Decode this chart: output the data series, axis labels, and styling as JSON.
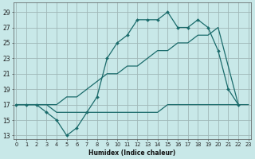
{
  "xlabel": "Humidex (Indice chaleur)",
  "background_color": "#c8e8e8",
  "grid_color": "#a0b8b8",
  "line_color": "#1a6b6b",
  "xlim": [
    0,
    23
  ],
  "ylim": [
    13,
    30
  ],
  "yticks": [
    13,
    15,
    17,
    19,
    21,
    23,
    25,
    27,
    29
  ],
  "xticks": [
    0,
    1,
    2,
    3,
    4,
    5,
    6,
    7,
    8,
    9,
    10,
    11,
    12,
    13,
    14,
    15,
    16,
    17,
    18,
    19,
    20,
    21,
    22,
    23
  ],
  "curve_x": [
    0,
    1,
    2,
    3,
    4,
    5,
    6,
    7,
    8,
    9,
    10,
    11,
    12,
    13,
    14,
    15,
    16,
    17,
    18,
    19,
    20,
    21,
    22
  ],
  "curve_y": [
    17,
    17,
    17,
    16,
    15,
    13,
    14,
    16,
    18,
    23,
    25,
    26,
    28,
    28,
    28,
    29,
    27,
    27,
    28,
    27,
    24,
    19,
    17
  ],
  "diag_x": [
    0,
    3,
    4,
    5,
    6,
    7,
    8,
    9,
    10,
    11,
    12,
    13,
    14,
    15,
    16,
    17,
    18,
    19,
    20,
    22
  ],
  "diag_y": [
    17,
    17,
    17,
    18,
    18,
    19,
    20,
    21,
    21,
    22,
    22,
    23,
    24,
    24,
    25,
    25,
    26,
    26,
    27,
    17
  ],
  "flat_x": [
    0,
    1,
    2,
    3,
    4,
    5,
    6,
    7,
    8,
    9,
    10,
    11,
    12,
    13,
    14,
    15,
    16,
    17,
    18,
    19,
    20,
    21,
    22,
    23
  ],
  "flat_y": [
    17,
    17,
    17,
    17,
    16,
    16,
    16,
    16,
    16,
    16,
    16,
    16,
    16,
    16,
    16,
    17,
    17,
    17,
    17,
    17,
    17,
    17,
    17,
    17
  ]
}
